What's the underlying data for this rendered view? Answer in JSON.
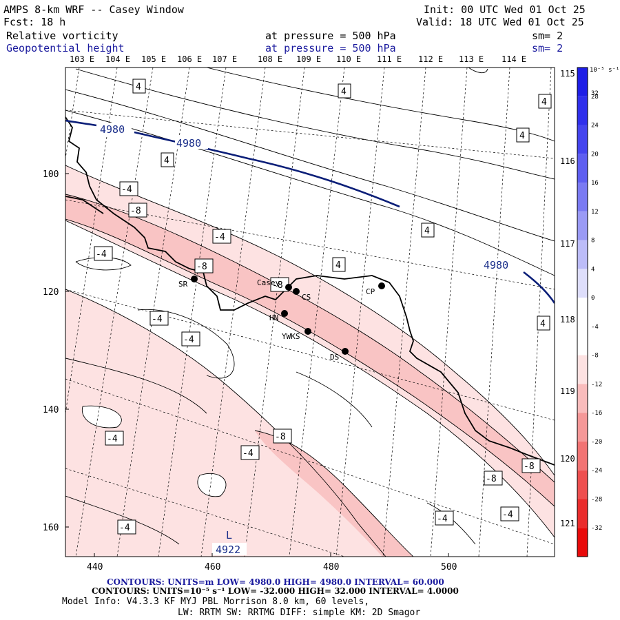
{
  "header": {
    "title": "AMPS 8-km WRF -- Casey Window",
    "init": "Init: 00 UTC Wed 01 Oct 25",
    "fcst": "Fcst:   18 h",
    "valid": "Valid: 18 UTC Wed 01 Oct 25",
    "field1": {
      "name": "Relative vorticity",
      "pressure": "at pressure =  500 hPa",
      "sm": "sm= 2"
    },
    "field2": {
      "name": "Geopotential height",
      "pressure": "at pressure =  500 hPa",
      "sm": "sm= 2"
    }
  },
  "map": {
    "lon_top": [
      "103 E",
      "104 E",
      "105 E",
      "106 E",
      "107 E",
      "108 E",
      "109 E",
      "110 E",
      "111 E",
      "112 E",
      "113 E",
      "114 E"
    ],
    "lon_right": [
      "115 E",
      "116 E",
      "117 E",
      "118 E",
      "119 E",
      "120 E",
      "121 E"
    ],
    "x_ticks": [
      "440",
      "460",
      "480",
      "500"
    ],
    "y_ticks": [
      "100",
      "120",
      "140",
      "160"
    ],
    "vort_labels": [
      "4",
      "4",
      "4",
      "4",
      "4",
      "4",
      "4",
      "4",
      "4",
      "-4",
      "-8",
      "-4",
      "-4",
      "-8",
      "-8",
      "-4",
      "-4",
      "-4",
      "-8",
      "-4",
      "-8",
      "-8",
      "-4",
      "-4",
      "-4",
      "-4"
    ],
    "height_labels": [
      "4980",
      "4980",
      "4980"
    ],
    "low": {
      "mark": "L",
      "value": "4922"
    },
    "sites": [
      "SR",
      "Casey",
      "CS",
      "CP",
      "HN",
      "YWKS",
      "DS"
    ]
  },
  "colorbar": {
    "unit": "10⁻⁵ s⁻¹",
    "labels": [
      "32",
      "28",
      "24",
      "20",
      "16",
      "12",
      "8",
      "4",
      "0",
      "-4",
      "-8",
      "-12",
      "-16",
      "-20",
      "-24",
      "-28",
      "-32"
    ],
    "colors": [
      "#1e1ee6",
      "#2f2fec",
      "#4444ee",
      "#5e5ef0",
      "#7a7af2",
      "#9a9af5",
      "#bcbcf8",
      "#dedefb",
      "#ffffff",
      "#ffffff",
      "#fde2e2",
      "#f9bcbc",
      "#f59898",
      "#f17373",
      "#ee4f4f",
      "#ea2c2c",
      "#e80a0a"
    ]
  },
  "footer": {
    "line1": "CONTOURS:  UNITS=m  LOW=  4980.0      HIGH=  4980.0      INTERVAL=   60.000",
    "line2": "CONTOURS:  UNITS=10⁻⁵ s⁻¹  LOW= -32.000      HIGH=  32.000     INTERVAL=   4.0000",
    "line3": "Model Info: V4.3.3   KF      MYJ PBL  Morrison              8.0 km,  60 levels,",
    "line4": "LW: RRTM SW: RRTMG   DIFF: simple KM: 2D Smagor"
  }
}
